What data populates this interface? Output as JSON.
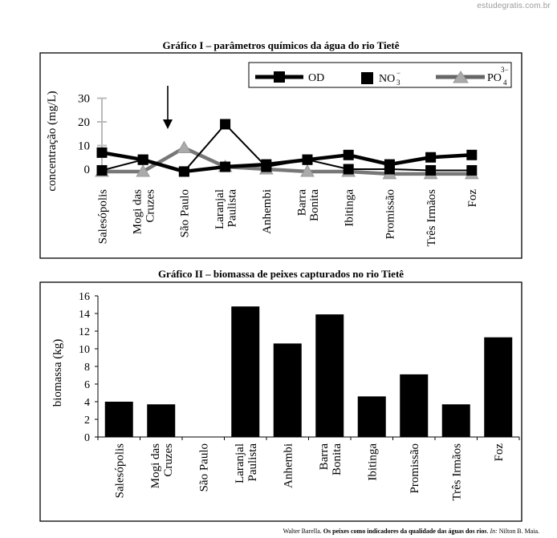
{
  "watermark": "estudegratis.com.br",
  "chart_data": [
    {
      "type": "line",
      "title": "Gráfico I – parâmetros químicos da água do rio Tietê",
      "ylabel": "concentração (mg/L)",
      "categories": [
        "Salesópolis",
        "Mogi das Cruzes",
        "São Paulo",
        "Laranjal Paulista",
        "Anhembi",
        "Barra Bonita",
        "Ibitinga",
        "Promissão",
        "Três Irmãos",
        "Foz"
      ],
      "yticks": [
        0,
        10,
        20,
        30
      ],
      "ylim": [
        -5,
        33
      ],
      "series": [
        {
          "name": "OD",
          "marker": "square",
          "values": [
            7,
            4,
            -1,
            1,
            2,
            4,
            6,
            2,
            5,
            6
          ],
          "color": "#000000"
        },
        {
          "name": "NO3-",
          "marker": "square",
          "values": [
            -0.5,
            4,
            -1,
            19,
            1,
            4,
            0,
            0,
            -0.5,
            -0.5
          ],
          "color": "#000000"
        },
        {
          "name": "PO4 3-",
          "marker": "triangle",
          "values": [
            -1,
            -1,
            9,
            1,
            0,
            -1,
            -1,
            -2,
            -2,
            -2
          ],
          "color": "#555555"
        }
      ],
      "legend": {
        "position": "top-right",
        "items": [
          {
            "label": "OD"
          },
          {
            "base": "NO",
            "sub": "3",
            "sup": "−"
          },
          {
            "base": "PO",
            "sub": "4",
            "sup": "3−"
          }
        ]
      },
      "annotation": "arrow pointing at São Paulo"
    },
    {
      "type": "bar",
      "title": "Gráfico II – biomassa de peixes capturados no rio Tietê",
      "ylabel": "biomassa (kg)",
      "categories": [
        "Salesópolis",
        "Mogi das Cruzes",
        "São Paulo",
        "Laranjal Paulista",
        "Anhembi",
        "Barra Bonita",
        "Ibitinga",
        "Promissão",
        "Três Irmãos",
        "Foz"
      ],
      "values": [
        4.0,
        3.7,
        0,
        14.8,
        10.6,
        13.9,
        4.6,
        7.1,
        3.7,
        11.3
      ],
      "yticks": [
        0,
        2,
        4,
        6,
        8,
        10,
        12,
        14,
        16
      ],
      "ylim": [
        0,
        16
      ]
    }
  ],
  "source": {
    "author": "Walter Barella. ",
    "title": "Os peixes como indicadores da qualidade das águas dos rios",
    "in_label": "In:",
    "rest": " Nilton B. Maia."
  }
}
